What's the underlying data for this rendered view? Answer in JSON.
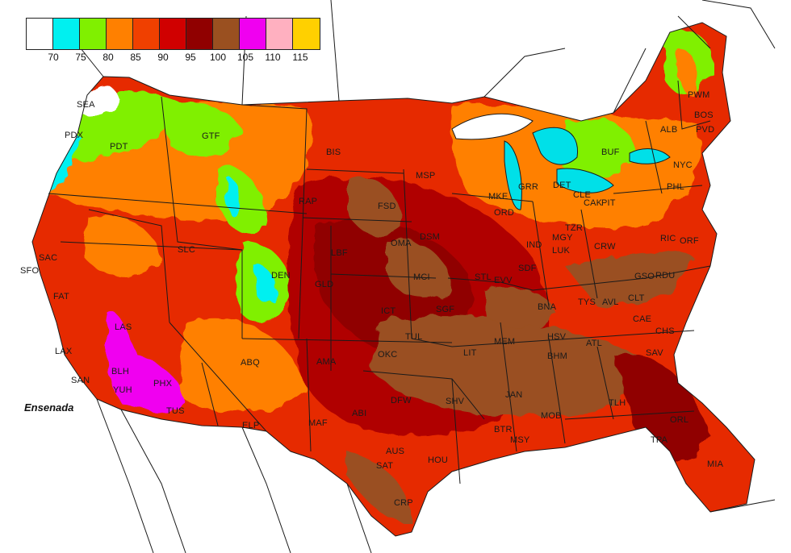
{
  "legend": {
    "swatches": [
      {
        "color": "#ffffff"
      },
      {
        "color": "#00f0f0"
      },
      {
        "color": "#80f000"
      },
      {
        "color": "#ff8000"
      },
      {
        "color": "#f04000"
      },
      {
        "color": "#d00000"
      },
      {
        "color": "#900000"
      },
      {
        "color": "#9a5020"
      },
      {
        "color": "#f000f0"
      },
      {
        "color": "#ffb0c0"
      },
      {
        "color": "#ffd000"
      }
    ],
    "labels": [
      "70",
      "75",
      "80",
      "85",
      "90",
      "95",
      "100",
      "105",
      "110",
      "115"
    ]
  },
  "colors": {
    "ocean": "#ffffff",
    "land_base": "#d81800",
    "lakes": "#00e0e8",
    "borders": "#1a1a1a"
  },
  "place_label": "Ensenada",
  "cities": [
    "SEA",
    "PDX",
    "PDT",
    "GTF",
    "BIS",
    "MSP",
    "ALB",
    "PWM",
    "BOS",
    "PVD",
    "BUF",
    "DET",
    "GRR",
    "MKE",
    "ORD",
    "CLE",
    "CAK",
    "PIT",
    "NYC",
    "PHL",
    "FSD",
    "RAP",
    "SLC",
    "SAC",
    "SFO",
    "FAT",
    "DEN",
    "LBF",
    "OMA",
    "DSM",
    "MCI",
    "STL",
    "EVV",
    "SDF",
    "IND",
    "MGY",
    "LUK",
    "TZR",
    "CRW",
    "RIC",
    "ORF",
    "GSO",
    "RDU",
    "TYS",
    "AVL",
    "CLT",
    "CAE",
    "CHS",
    "SAV",
    "GLD",
    "ICT",
    "SGF",
    "BNA",
    "HSV",
    "MEM",
    "LIT",
    "TUL",
    "OKC",
    "AMA",
    "ABQ",
    "LAS",
    "LAX",
    "SAN",
    "BLH",
    "YUH",
    "PHX",
    "TUS",
    "ELP",
    "MAF",
    "ABI",
    "DFW",
    "SHV",
    "JAN",
    "BHM",
    "ATL",
    "TLH",
    "MOB",
    "BTR",
    "MSY",
    "HOU",
    "AUS",
    "SAT",
    "CRP",
    "ORL",
    "TPA",
    "MIA"
  ]
}
